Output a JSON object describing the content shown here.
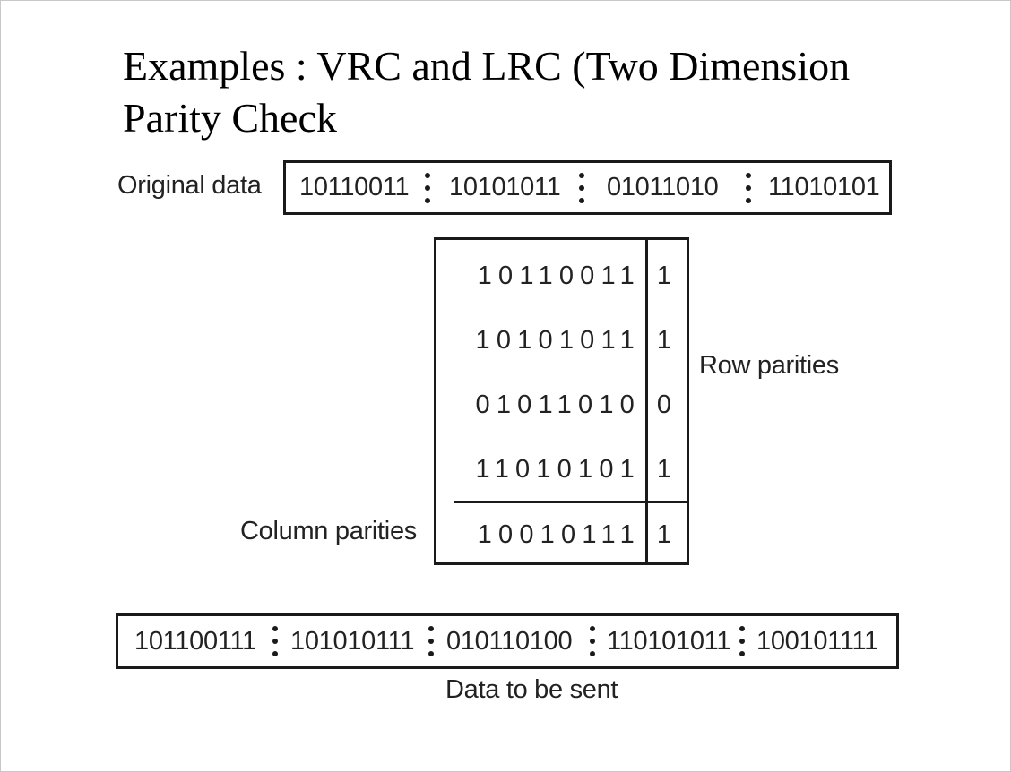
{
  "slide": {
    "title_line1": "Examples : VRC and LRC (Two Dimension",
    "title_line2": "Parity Check"
  },
  "original": {
    "label": "Original data",
    "segments": [
      "10110011",
      "10101011",
      "01011010",
      "11010101"
    ]
  },
  "matrix": {
    "rows": [
      {
        "bits": "10110011",
        "parity": "1"
      },
      {
        "bits": "10101011",
        "parity": "1"
      },
      {
        "bits": "01011010",
        "parity": "0"
      },
      {
        "bits": "11010101",
        "parity": "1"
      }
    ],
    "column_parity": {
      "bits": "10010111",
      "parity": "1"
    },
    "row_parities_label": "Row parities",
    "column_parities_label": "Column parities"
  },
  "sent": {
    "label": "Data to be sent",
    "segments": [
      "101100111",
      "101010111",
      "010110100",
      "110101011",
      "100101111"
    ]
  }
}
